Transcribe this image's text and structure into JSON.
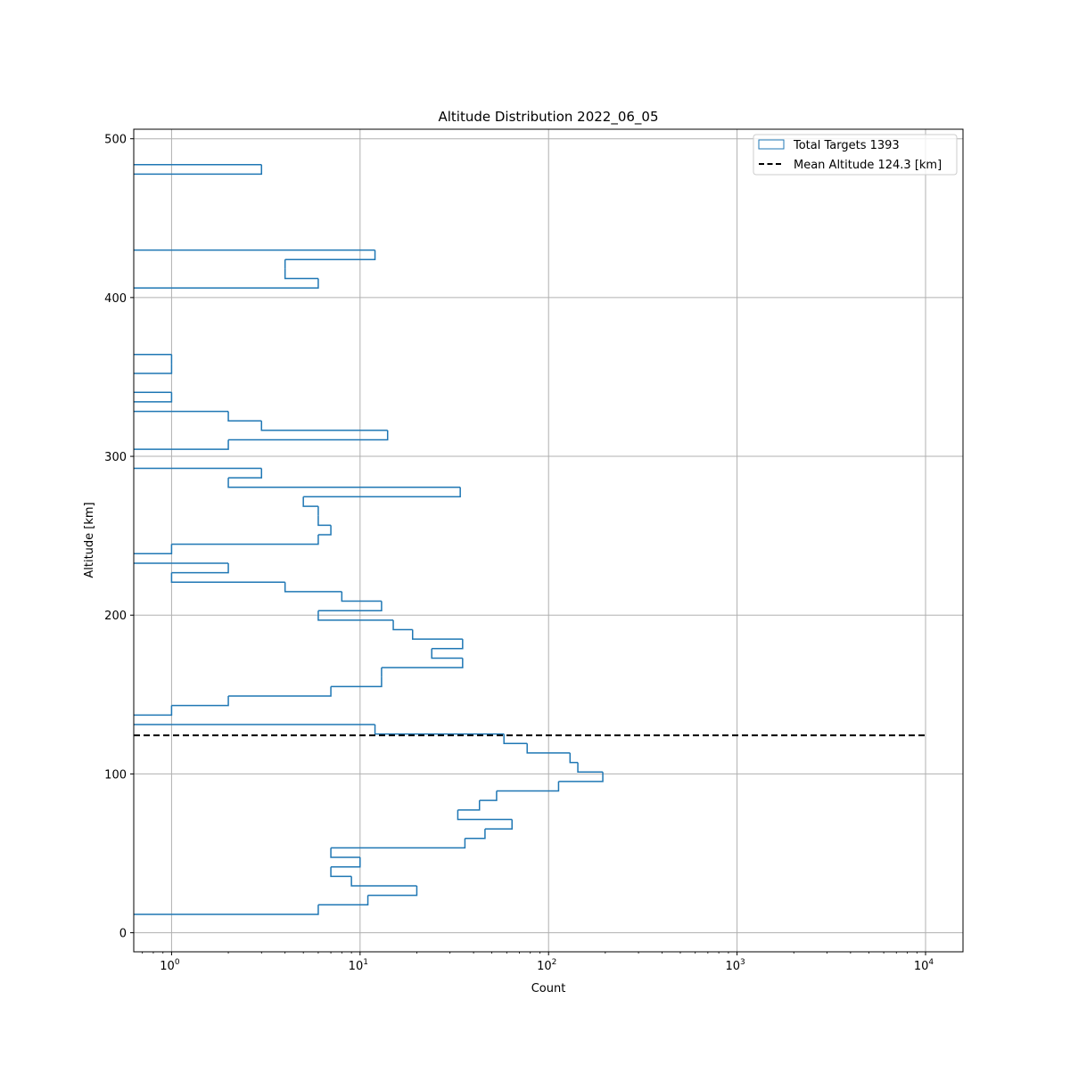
{
  "chart_data": {
    "type": "histogram-step-horizontal",
    "title": "Altitude Distribution 2022_06_05",
    "xlabel": "Count",
    "ylabel": "Altitude [km]",
    "xscale": "log",
    "xlim": [
      0.63,
      15800
    ],
    "ylim": [
      -12,
      506
    ],
    "grid": true,
    "legend_position": "top-right",
    "x_ticks": [
      {
        "base": "10",
        "exp": "0",
        "value": 1
      },
      {
        "base": "10",
        "exp": "1",
        "value": 10
      },
      {
        "base": "10",
        "exp": "2",
        "value": 100
      },
      {
        "base": "10",
        "exp": "3",
        "value": 1000
      },
      {
        "base": "10",
        "exp": "4",
        "value": 10000
      }
    ],
    "y_ticks": [
      0,
      100,
      200,
      300,
      400,
      500
    ],
    "y_tick_labels": [
      "0",
      "100",
      "200",
      "300",
      "400",
      "500"
    ],
    "bin_start_km": 11.6,
    "bin_width_km": 5.976,
    "counts": [
      6,
      11,
      20,
      9,
      7,
      10,
      7,
      36,
      46,
      64,
      33,
      43,
      53,
      113,
      194,
      143,
      130,
      77,
      58,
      12,
      0,
      1,
      2,
      7,
      13,
      13,
      35,
      24,
      35,
      19,
      15,
      6,
      13,
      8,
      4,
      1,
      2,
      0,
      1,
      6,
      7,
      6,
      6,
      5,
      34,
      2,
      3,
      0,
      0,
      2,
      14,
      3,
      2,
      0,
      1,
      0,
      0,
      1,
      1,
      0,
      0,
      0,
      0,
      0,
      0,
      0,
      6,
      4,
      4,
      12,
      0,
      0,
      0,
      0,
      0,
      0,
      0,
      0,
      3
    ],
    "mean_altitude_km": 124.3,
    "mean_line_x_range": [
      0.63,
      10000
    ],
    "legend": [
      {
        "label": "Total Targets 1393",
        "style": "hist-outline"
      },
      {
        "label": "Mean Altitude 124.3 [km]",
        "style": "dashed-line"
      }
    ],
    "colors": {
      "hist": "#1f77b4",
      "mean": "#000000",
      "grid": "#b0b0b0"
    }
  }
}
